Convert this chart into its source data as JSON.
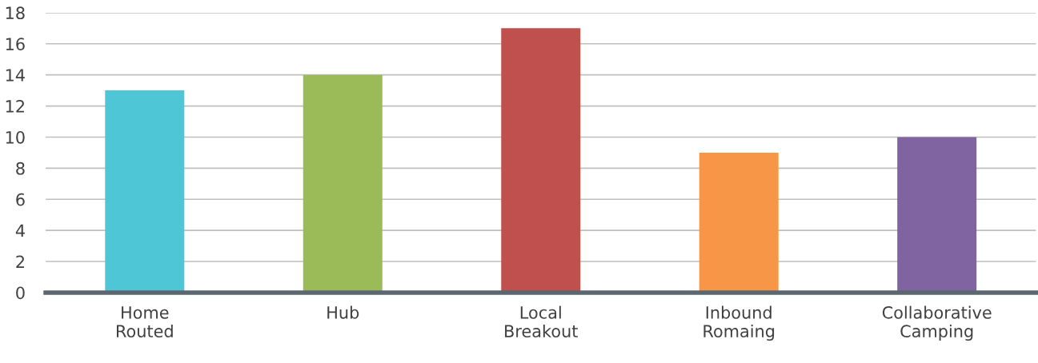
{
  "chart_data": {
    "type": "bar",
    "categories": [
      "Home\nRouted",
      "Hub",
      "Local\nBreakout",
      "Inbound\nRomaing",
      "Collaborative\nCamping"
    ],
    "values": [
      13,
      14,
      17,
      9,
      10
    ],
    "colors": [
      "#4fc6d6",
      "#9bbb59",
      "#c0504d",
      "#f79646",
      "#8064a2"
    ],
    "ylim": [
      0,
      18
    ],
    "yticks": [
      0,
      2,
      4,
      6,
      8,
      10,
      12,
      14,
      16,
      18
    ],
    "grid": "y"
  }
}
